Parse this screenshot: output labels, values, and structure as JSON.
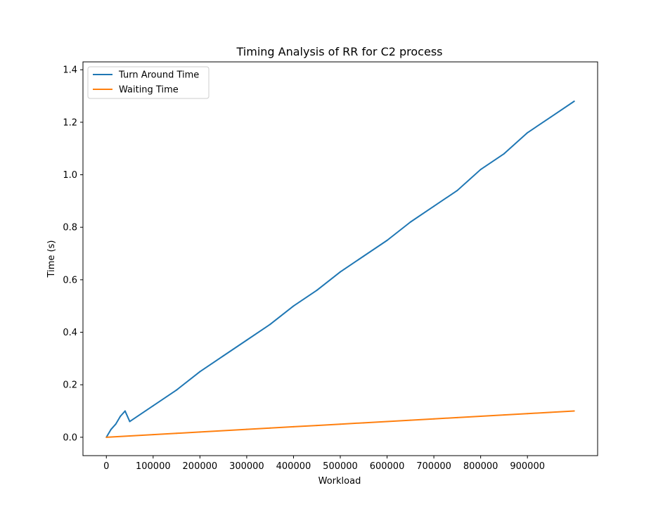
{
  "chart_data": {
    "type": "line",
    "title": "Timing Analysis of RR for C2 process",
    "xlabel": "Workload",
    "ylabel": "Time (s)",
    "xlim": [
      -50000,
      1050000
    ],
    "ylim": [
      -0.07,
      1.43
    ],
    "xticks": [
      0,
      100000,
      200000,
      300000,
      400000,
      500000,
      600000,
      700000,
      800000,
      900000
    ],
    "yticks": [
      0.0,
      0.2,
      0.4,
      0.6,
      0.8,
      1.0,
      1.2,
      1.4
    ],
    "xtick_labels": [
      "0",
      "100000",
      "200000",
      "300000",
      "400000",
      "500000",
      "600000",
      "700000",
      "800000",
      "900000"
    ],
    "ytick_labels": [
      "0.0",
      "0.2",
      "0.4",
      "0.6",
      "0.8",
      "1.0",
      "1.2",
      "1.4"
    ],
    "grid": false,
    "legend_position": "top-left",
    "series": [
      {
        "name": "Turn Around Time",
        "color": "#1f77b4",
        "x": [
          0,
          10000,
          20000,
          30000,
          40000,
          50000,
          100000,
          150000,
          200000,
          250000,
          300000,
          350000,
          400000,
          450000,
          500000,
          550000,
          600000,
          650000,
          700000,
          750000,
          800000,
          850000,
          900000,
          950000,
          1000000
        ],
        "y": [
          0.0,
          0.03,
          0.05,
          0.08,
          0.1,
          0.06,
          0.12,
          0.18,
          0.25,
          0.31,
          0.37,
          0.43,
          0.5,
          0.56,
          0.63,
          0.69,
          0.75,
          0.82,
          0.88,
          0.94,
          1.02,
          1.08,
          1.16,
          1.22,
          1.28
        ]
      },
      {
        "name": "Waiting Time",
        "color": "#ff7f0e",
        "x": [
          0,
          50000,
          100000,
          150000,
          200000,
          250000,
          300000,
          350000,
          400000,
          450000,
          500000,
          550000,
          600000,
          650000,
          700000,
          750000,
          800000,
          850000,
          900000,
          950000,
          1000000
        ],
        "y": [
          0.0,
          0.005,
          0.01,
          0.015,
          0.02,
          0.025,
          0.03,
          0.035,
          0.04,
          0.045,
          0.05,
          0.055,
          0.06,
          0.065,
          0.07,
          0.075,
          0.08,
          0.085,
          0.09,
          0.095,
          0.1
        ]
      }
    ]
  }
}
